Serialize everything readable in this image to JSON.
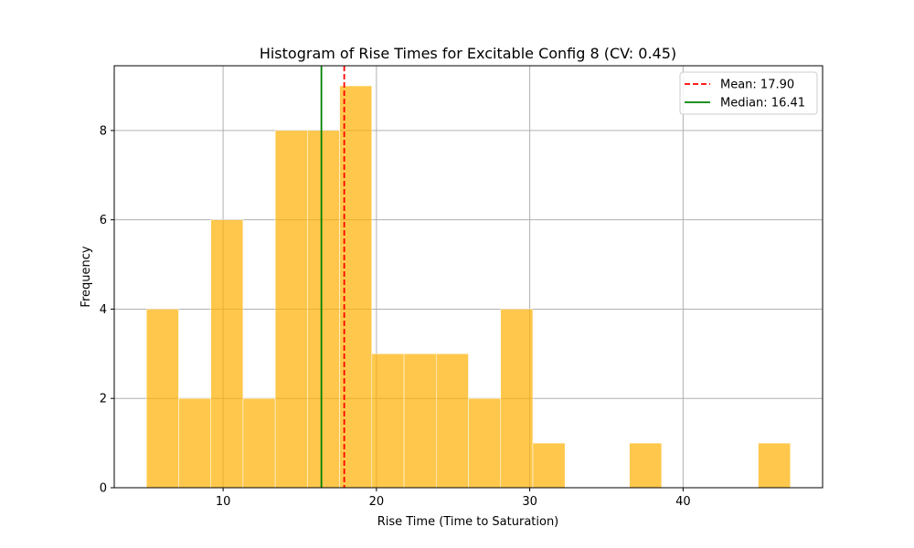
{
  "chart_data": {
    "type": "bar",
    "title": "Histogram of Rise Times for Excitable Config 8 (CV: 0.45)",
    "xlabel": "Rise Time (Time to Saturation)",
    "ylabel": "Frequency",
    "xlim": [
      2.9,
      49.1
    ],
    "ylim": [
      0,
      9.45
    ],
    "xticks": [
      10,
      20,
      30,
      40
    ],
    "yticks": [
      0,
      2,
      4,
      6,
      8
    ],
    "grid": true,
    "bar_color": "#FFB000",
    "bar_opacity": 0.7,
    "bin_edges": [
      5.0,
      7.1,
      9.2,
      11.3,
      13.4,
      15.5,
      17.6,
      19.7,
      21.8,
      23.9,
      26.0,
      28.1,
      30.2,
      32.3,
      34.4,
      36.5,
      38.6,
      40.7,
      42.8,
      44.9,
      47.0
    ],
    "counts": [
      4,
      2,
      6,
      2,
      8,
      8,
      9,
      3,
      3,
      3,
      2,
      4,
      1,
      0,
      0,
      1,
      0,
      0,
      0,
      1
    ],
    "lines": [
      {
        "label": "Mean: 17.90",
        "x": 17.9,
        "color": "#FF0000",
        "style": "dashed"
      },
      {
        "label": "Median: 16.41",
        "x": 16.41,
        "color": "#008000",
        "style": "solid"
      }
    ],
    "legend_position": "top-right"
  }
}
